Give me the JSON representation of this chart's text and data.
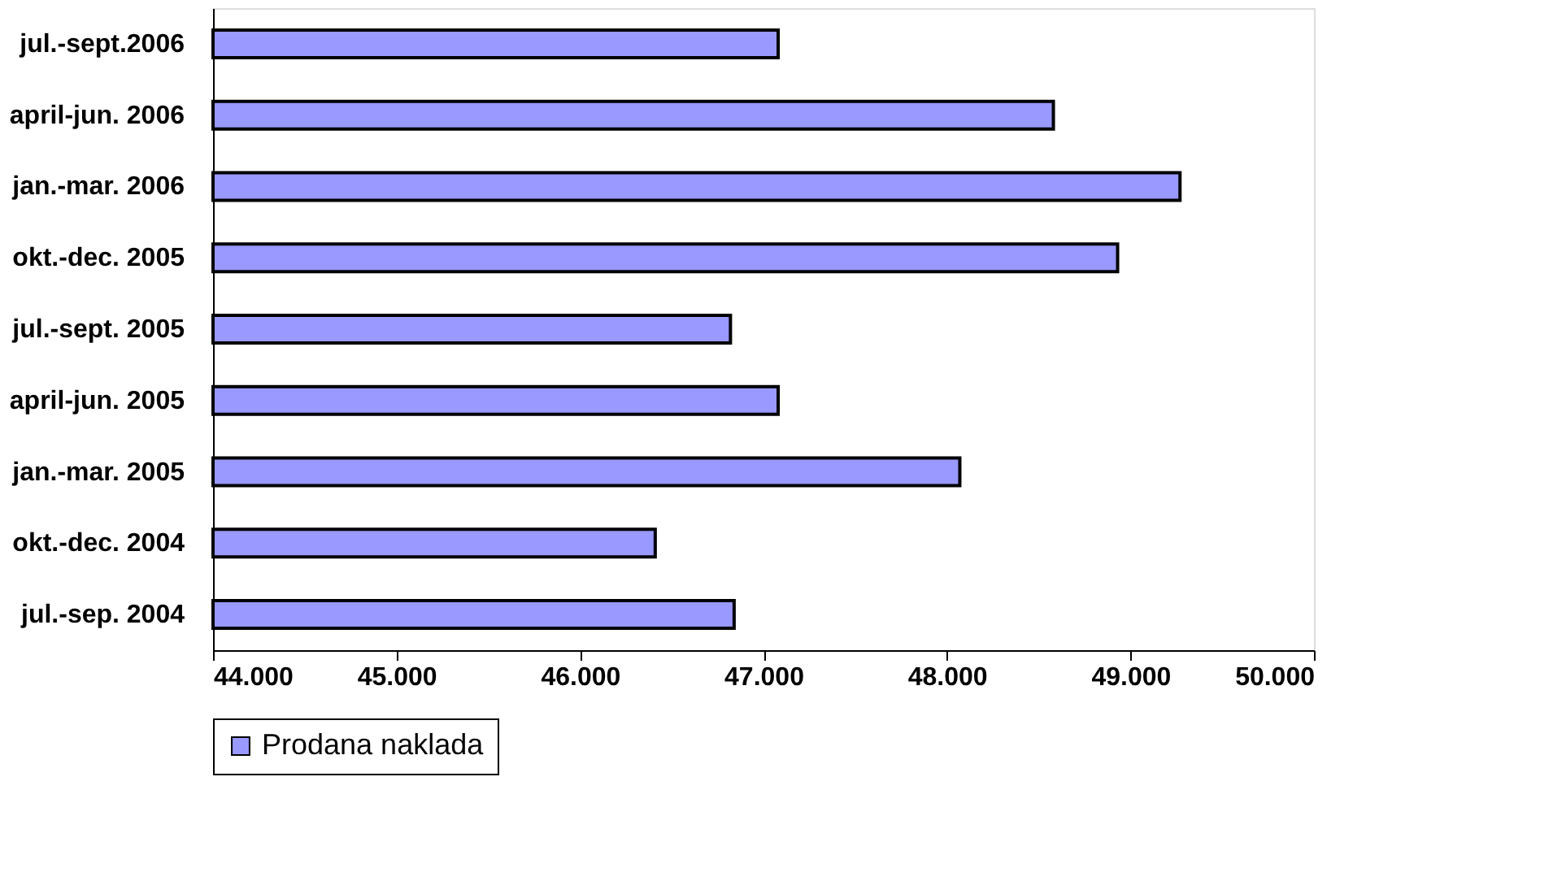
{
  "chart_data": {
    "type": "bar",
    "orientation": "horizontal",
    "categories": [
      "jul.-sept.2006",
      "april-jun. 2006",
      "jan.-mar. 2006",
      "okt.-dec. 2005",
      "jul.-sept. 2005",
      "april-jun. 2005",
      "jan.-mar. 2005",
      "okt.-dec. 2004",
      "jul.-sep. 2004"
    ],
    "series": [
      {
        "name": "Prodana naklada",
        "color": "#9999ff",
        "values": [
          47080,
          48580,
          49270,
          48930,
          46820,
          47080,
          48070,
          46410,
          46840
        ]
      }
    ],
    "xlim": [
      44000,
      50000
    ],
    "xticks": [
      {
        "value": 44000,
        "label": "44.000"
      },
      {
        "value": 45000,
        "label": "45.000"
      },
      {
        "value": 46000,
        "label": "46.000"
      },
      {
        "value": 47000,
        "label": "47.000"
      },
      {
        "value": 48000,
        "label": "48.000"
      },
      {
        "value": 49000,
        "label": "49.000"
      },
      {
        "value": 50000,
        "label": "50.000"
      }
    ],
    "grid": false,
    "legend": "bottom"
  }
}
